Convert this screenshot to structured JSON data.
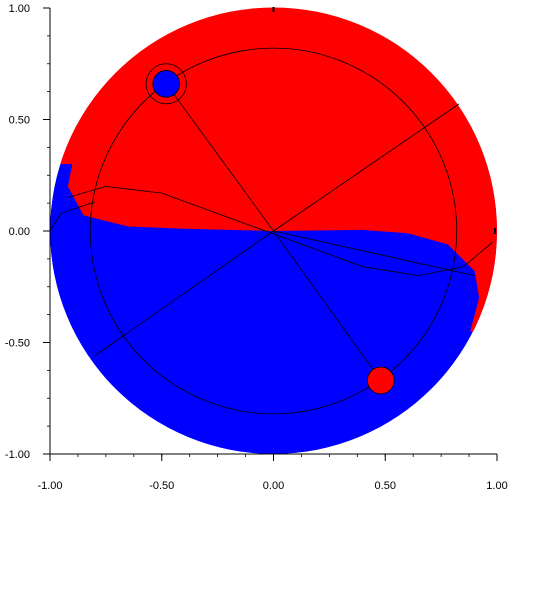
{
  "chart_data": {
    "type": "scatter",
    "title": "",
    "xlabel": "",
    "ylabel": "",
    "xlim": [
      -1.0,
      1.0
    ],
    "ylim": [
      -1.0,
      1.0
    ],
    "grid": false,
    "x_ticks": [
      -1.0,
      -0.5,
      0.0,
      0.5,
      1.0
    ],
    "x_tick_labels": [
      "-1.00",
      "-0.50",
      "0.00",
      "0.50",
      "1.00"
    ],
    "y_ticks": [
      -1.0,
      -0.5,
      0.0,
      0.5,
      1.0
    ],
    "y_tick_labels": [
      "-1.00",
      "-0.50",
      "0.00",
      "0.50",
      "1.00"
    ],
    "disk_radius": 1.0,
    "inner_circle_radius": 0.82,
    "upper_region_color": "#ff0000",
    "lower_region_color": "#0000ff",
    "boundary_curve": [
      [
        -0.9,
        0.3
      ],
      [
        -0.92,
        0.2
      ],
      [
        -0.85,
        0.07
      ],
      [
        -0.65,
        0.02
      ],
      [
        -0.4,
        0.01
      ],
      [
        0.0,
        0.0
      ],
      [
        0.4,
        0.005
      ],
      [
        0.6,
        -0.01
      ],
      [
        0.78,
        -0.06
      ],
      [
        0.9,
        -0.18
      ],
      [
        0.92,
        -0.3
      ],
      [
        0.88,
        -0.45
      ]
    ],
    "markers": [
      {
        "x": -0.48,
        "y": 0.66,
        "color": "#0000ff",
        "radius": 0.06,
        "ring": true
      },
      {
        "x": 0.48,
        "y": -0.67,
        "color": "#ff0000",
        "radius": 0.06,
        "ring": false
      }
    ],
    "rays": [
      {
        "x": -0.48,
        "y": 0.66
      },
      {
        "x": 0.83,
        "y": 0.57
      },
      {
        "x": 0.48,
        "y": -0.67
      },
      {
        "x": -0.8,
        "y": -0.56
      },
      {
        "x": 0.9,
        "y": -0.2
      },
      {
        "x": 0.0,
        "y": 0.0
      }
    ],
    "extra_curves": [
      [
        [
          -0.92,
          0.15
        ],
        [
          -0.75,
          0.2
        ],
        [
          -0.5,
          0.17
        ],
        [
          -0.2,
          0.06
        ],
        [
          0.1,
          -0.05
        ],
        [
          0.4,
          -0.16
        ],
        [
          0.65,
          -0.2
        ],
        [
          0.85,
          -0.16
        ],
        [
          0.98,
          -0.05
        ]
      ],
      [
        [
          -1.0,
          0.0
        ],
        [
          -0.95,
          0.08
        ],
        [
          -0.8,
          0.13
        ]
      ]
    ]
  }
}
